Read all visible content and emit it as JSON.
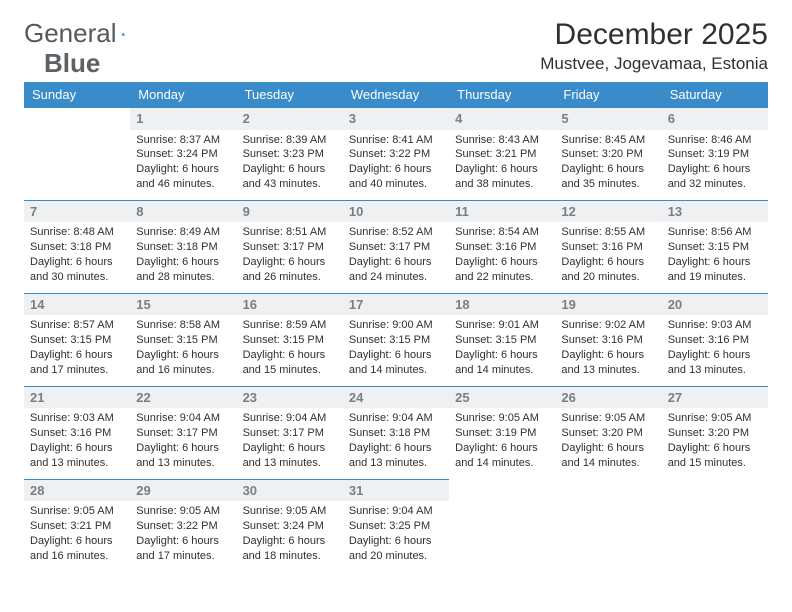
{
  "logo": {
    "text1": "General",
    "text2": "Blue"
  },
  "title": "December 2025",
  "location": "Mustvee, Jogevamaa, Estonia",
  "colors": {
    "header_bg": "#3a8bca",
    "header_text": "#ffffff",
    "daynum_bg": "#eef0f1",
    "daynum_text": "#7a7f83",
    "body_text": "#303030",
    "page_bg": "#ffffff",
    "row_border": "#3a8bca"
  },
  "typography": {
    "month_title_size_pt": 22,
    "location_size_pt": 13,
    "weekday_header_size_pt": 10,
    "daynum_size_pt": 10,
    "cell_text_size_pt": 8
  },
  "type": "table",
  "weekdays": [
    "Sunday",
    "Monday",
    "Tuesday",
    "Wednesday",
    "Thursday",
    "Friday",
    "Saturday"
  ],
  "weeks": [
    [
      null,
      {
        "n": "1",
        "sr": "8:37 AM",
        "ss": "3:24 PM",
        "dl": "6 hours and 46 minutes."
      },
      {
        "n": "2",
        "sr": "8:39 AM",
        "ss": "3:23 PM",
        "dl": "6 hours and 43 minutes."
      },
      {
        "n": "3",
        "sr": "8:41 AM",
        "ss": "3:22 PM",
        "dl": "6 hours and 40 minutes."
      },
      {
        "n": "4",
        "sr": "8:43 AM",
        "ss": "3:21 PM",
        "dl": "6 hours and 38 minutes."
      },
      {
        "n": "5",
        "sr": "8:45 AM",
        "ss": "3:20 PM",
        "dl": "6 hours and 35 minutes."
      },
      {
        "n": "6",
        "sr": "8:46 AM",
        "ss": "3:19 PM",
        "dl": "6 hours and 32 minutes."
      }
    ],
    [
      {
        "n": "7",
        "sr": "8:48 AM",
        "ss": "3:18 PM",
        "dl": "6 hours and 30 minutes."
      },
      {
        "n": "8",
        "sr": "8:49 AM",
        "ss": "3:18 PM",
        "dl": "6 hours and 28 minutes."
      },
      {
        "n": "9",
        "sr": "8:51 AM",
        "ss": "3:17 PM",
        "dl": "6 hours and 26 minutes."
      },
      {
        "n": "10",
        "sr": "8:52 AM",
        "ss": "3:17 PM",
        "dl": "6 hours and 24 minutes."
      },
      {
        "n": "11",
        "sr": "8:54 AM",
        "ss": "3:16 PM",
        "dl": "6 hours and 22 minutes."
      },
      {
        "n": "12",
        "sr": "8:55 AM",
        "ss": "3:16 PM",
        "dl": "6 hours and 20 minutes."
      },
      {
        "n": "13",
        "sr": "8:56 AM",
        "ss": "3:15 PM",
        "dl": "6 hours and 19 minutes."
      }
    ],
    [
      {
        "n": "14",
        "sr": "8:57 AM",
        "ss": "3:15 PM",
        "dl": "6 hours and 17 minutes."
      },
      {
        "n": "15",
        "sr": "8:58 AM",
        "ss": "3:15 PM",
        "dl": "6 hours and 16 minutes."
      },
      {
        "n": "16",
        "sr": "8:59 AM",
        "ss": "3:15 PM",
        "dl": "6 hours and 15 minutes."
      },
      {
        "n": "17",
        "sr": "9:00 AM",
        "ss": "3:15 PM",
        "dl": "6 hours and 14 minutes."
      },
      {
        "n": "18",
        "sr": "9:01 AM",
        "ss": "3:15 PM",
        "dl": "6 hours and 14 minutes."
      },
      {
        "n": "19",
        "sr": "9:02 AM",
        "ss": "3:16 PM",
        "dl": "6 hours and 13 minutes."
      },
      {
        "n": "20",
        "sr": "9:03 AM",
        "ss": "3:16 PM",
        "dl": "6 hours and 13 minutes."
      }
    ],
    [
      {
        "n": "21",
        "sr": "9:03 AM",
        "ss": "3:16 PM",
        "dl": "6 hours and 13 minutes."
      },
      {
        "n": "22",
        "sr": "9:04 AM",
        "ss": "3:17 PM",
        "dl": "6 hours and 13 minutes."
      },
      {
        "n": "23",
        "sr": "9:04 AM",
        "ss": "3:17 PM",
        "dl": "6 hours and 13 minutes."
      },
      {
        "n": "24",
        "sr": "9:04 AM",
        "ss": "3:18 PM",
        "dl": "6 hours and 13 minutes."
      },
      {
        "n": "25",
        "sr": "9:05 AM",
        "ss": "3:19 PM",
        "dl": "6 hours and 14 minutes."
      },
      {
        "n": "26",
        "sr": "9:05 AM",
        "ss": "3:20 PM",
        "dl": "6 hours and 14 minutes."
      },
      {
        "n": "27",
        "sr": "9:05 AM",
        "ss": "3:20 PM",
        "dl": "6 hours and 15 minutes."
      }
    ],
    [
      {
        "n": "28",
        "sr": "9:05 AM",
        "ss": "3:21 PM",
        "dl": "6 hours and 16 minutes."
      },
      {
        "n": "29",
        "sr": "9:05 AM",
        "ss": "3:22 PM",
        "dl": "6 hours and 17 minutes."
      },
      {
        "n": "30",
        "sr": "9:05 AM",
        "ss": "3:24 PM",
        "dl": "6 hours and 18 minutes."
      },
      {
        "n": "31",
        "sr": "9:04 AM",
        "ss": "3:25 PM",
        "dl": "6 hours and 20 minutes."
      },
      null,
      null,
      null
    ]
  ],
  "labels": {
    "sunrise": "Sunrise:",
    "sunset": "Sunset:",
    "daylight": "Daylight:"
  }
}
